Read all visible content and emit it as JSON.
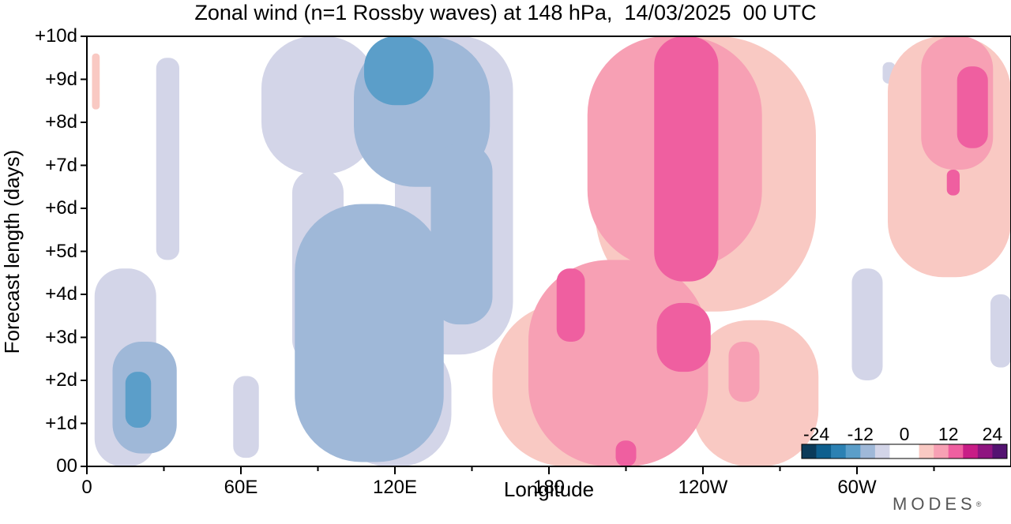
{
  "chart_data": {
    "type": "heatmap",
    "title": "Zonal wind (n=1 Rossby waves) at 148 hPa,  14/03/2025  00 UTC",
    "xlabel": "Longitude",
    "ylabel": "Forecast length (days)",
    "x_axis": {
      "ticks": [
        "0",
        "60E",
        "120E",
        "180",
        "120W",
        "60W"
      ],
      "range_deg_east": [
        0,
        360
      ],
      "minor_tick_step_deg": 30
    },
    "y_axis": {
      "ticks": [
        "00",
        "+1d",
        "+2d",
        "+3d",
        "+4d",
        "+5d",
        "+6d",
        "+7d",
        "+8d",
        "+9d",
        "+10d"
      ],
      "range_days": [
        0,
        10
      ]
    },
    "colorbar": {
      "position": "bottom-right",
      "tick_labels": [
        "-24",
        "-12",
        "0",
        "12",
        "24"
      ],
      "levels": [
        -24,
        -20,
        -16,
        -12,
        -8,
        -4,
        0,
        4,
        8,
        12,
        16,
        20,
        24
      ],
      "colors": [
        "#0b3b5a",
        "#0e5f8e",
        "#2c81b3",
        "#5b9ec9",
        "#9fb8d8",
        "#d3d5e8",
        "#ffffff",
        "#ffffff",
        "#f9c9c3",
        "#f7a0b4",
        "#ef5fa0",
        "#c81d86",
        "#8f1580",
        "#541371"
      ]
    },
    "fields": [
      {
        "name": "negative",
        "level": "-4",
        "color": "#d3d5e8",
        "regions": [
          {
            "lon": 3,
            "t": 0.0,
            "lon_w": 24,
            "t_h": 4.6
          },
          {
            "lon": 27,
            "t": 4.8,
            "lon_w": 9,
            "t_h": 4.7
          },
          {
            "lon": 57,
            "t": 0.2,
            "lon_w": 10,
            "t_h": 1.9
          },
          {
            "lon": 68,
            "t": 6.8,
            "lon_w": 45,
            "t_h": 3.2
          },
          {
            "lon": 80,
            "t": 2.4,
            "lon_w": 20,
            "t_h": 4.5
          },
          {
            "lon": 120,
            "t": 2.6,
            "lon_w": 46,
            "t_h": 7.4
          },
          {
            "lon": 97,
            "t": 0.0,
            "lon_w": 45,
            "t_h": 3.0
          },
          {
            "lon": 298,
            "t": 2.0,
            "lon_w": 12,
            "t_h": 2.6
          },
          {
            "lon": 310,
            "t": 8.9,
            "lon_w": 5,
            "t_h": 0.5
          },
          {
            "lon": 352,
            "t": 2.3,
            "lon_w": 8,
            "t_h": 1.7
          }
        ]
      },
      {
        "name": "negative",
        "level": "-8",
        "color": "#9fb8d8",
        "regions": [
          {
            "lon": 10,
            "t": 0.3,
            "lon_w": 25,
            "t_h": 2.6
          },
          {
            "lon": 81,
            "t": 0.1,
            "lon_w": 58,
            "t_h": 6.0
          },
          {
            "lon": 104,
            "t": 6.5,
            "lon_w": 53,
            "t_h": 3.5
          },
          {
            "lon": 134,
            "t": 3.3,
            "lon_w": 24,
            "t_h": 4.2
          }
        ]
      },
      {
        "name": "negative",
        "level": "-12",
        "color": "#5b9ec9",
        "regions": [
          {
            "lon": 15,
            "t": 0.9,
            "lon_w": 10,
            "t_h": 1.3
          },
          {
            "lon": 108,
            "t": 8.4,
            "lon_w": 27,
            "t_h": 1.6
          }
        ]
      },
      {
        "name": "positive",
        "level": "+4",
        "color": "#f9c9c3",
        "regions": [
          {
            "lon": 2,
            "t": 8.3,
            "lon_w": 3,
            "t_h": 1.3
          },
          {
            "lon": 158,
            "t": 0.0,
            "lon_w": 80,
            "t_h": 3.8
          },
          {
            "lon": 198,
            "t": 3.6,
            "lon_w": 86,
            "t_h": 6.4
          },
          {
            "lon": 236,
            "t": 0.0,
            "lon_w": 49,
            "t_h": 3.4
          },
          {
            "lon": 312,
            "t": 4.4,
            "lon_w": 48,
            "t_h": 5.6
          }
        ]
      },
      {
        "name": "positive",
        "level": "+8",
        "color": "#f7a0b4",
        "regions": [
          {
            "lon": 172,
            "t": 0.0,
            "lon_w": 70,
            "t_h": 4.8
          },
          {
            "lon": 195,
            "t": 4.6,
            "lon_w": 68,
            "t_h": 5.4
          },
          {
            "lon": 250,
            "t": 1.5,
            "lon_w": 12,
            "t_h": 1.4
          },
          {
            "lon": 325,
            "t": 6.9,
            "lon_w": 28,
            "t_h": 3.1
          }
        ]
      },
      {
        "name": "positive",
        "level": "+12",
        "color": "#ef5fa0",
        "regions": [
          {
            "lon": 183,
            "t": 2.9,
            "lon_w": 11,
            "t_h": 1.7
          },
          {
            "lon": 221,
            "t": 4.3,
            "lon_w": 25,
            "t_h": 5.7
          },
          {
            "lon": 222,
            "t": 2.2,
            "lon_w": 21,
            "t_h": 1.6
          },
          {
            "lon": 206,
            "t": 0.0,
            "lon_w": 8,
            "t_h": 0.6
          },
          {
            "lon": 339,
            "t": 7.4,
            "lon_w": 12,
            "t_h": 1.9
          },
          {
            "lon": 335,
            "t": 6.3,
            "lon_w": 5,
            "t_h": 0.6
          }
        ]
      }
    ]
  },
  "branding": {
    "logo_text": "MODES"
  }
}
